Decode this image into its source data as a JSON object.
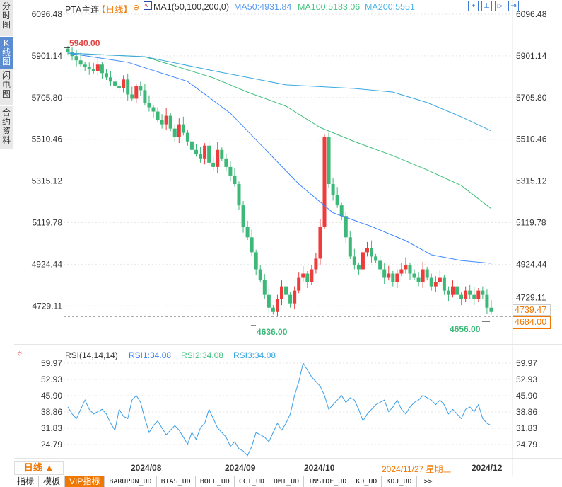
{
  "sidebar": {
    "tabs": [
      {
        "label": "分时图"
      },
      {
        "label": "K线图",
        "selected": true
      },
      {
        "label": "闪电图"
      },
      {
        "label": "合约资料"
      }
    ]
  },
  "header": {
    "symbol": "PTA主连",
    "period": "【日线】",
    "ma_label": "MA1(50,100,200,0)",
    "ma50": "MA50:4931.84",
    "ma100": "MA100:5183.06",
    "ma200": "MA200:5551",
    "icons": [
      "crosshair-icon",
      "fit-icon",
      "play-icon",
      "exit-icon"
    ]
  },
  "colors": {
    "up": "#ee3b3b",
    "down": "#3cb878",
    "ma50": "#3a86ff",
    "ma100": "#3dbf7a",
    "ma200": "#3aa7e0",
    "rsi": "#3a9ee8",
    "accent": "#f07800",
    "high_label": "#e04848",
    "low_label": "#3cb878"
  },
  "price_axis": [
    "6096.48",
    "5901.14",
    "5705.80",
    "5510.46",
    "5315.12",
    "5119.78",
    "4924.44",
    "4729.11"
  ],
  "annotations": {
    "high": "5940.00",
    "low": "4636.00",
    "low2": "4656.00",
    "last_price": "4739.47",
    "current_price": "4684.00"
  },
  "rsi": {
    "label": "RSI(14,14,14)",
    "rsi1": "RSI1:34.08",
    "rsi2": "RSI2:34.08",
    "rsi3": "RSI3:34.08",
    "axis": [
      "59.97",
      "52.93",
      "45.90",
      "38.86",
      "31.83",
      "24.79"
    ]
  },
  "date_axis": {
    "period_button": "日线 ▲",
    "dates": [
      "2024/08",
      "2024/09",
      "2024/10",
      "2024/12"
    ],
    "cursor_date": "2024/11/27 星期三"
  },
  "bottom_tabs": [
    "指标",
    "模板",
    "VIP指标",
    "BARUPDN_UD",
    "BIAS_UD",
    "BOLL_UD",
    "CCI_UD",
    "DMI_UD",
    "INSIDE_UD",
    "KD_UD",
    "KDJ_UD",
    ">>"
  ],
  "chart_data": {
    "type": "candlestick",
    "closes": [
      5920,
      5900,
      5880,
      5860,
      5850,
      5840,
      5830,
      5860,
      5820,
      5800,
      5780,
      5760,
      5750,
      5790,
      5720,
      5700,
      5760,
      5740,
      5680,
      5660,
      5640,
      5600,
      5580,
      5620,
      5560,
      5520,
      5580,
      5540,
      5500,
      5460,
      5440,
      5420,
      5480,
      5400,
      5380,
      5460,
      5420,
      5380,
      5340,
      5300,
      5200,
      5100,
      5050,
      4980,
      4900,
      4850,
      4780,
      4720,
      4700,
      4760,
      4820,
      4780,
      4740,
      4800,
      4860,
      4880,
      4840,
      4900,
      4950,
      5100,
      5520,
      5300,
      5250,
      5200,
      5150,
      5050,
      4960,
      4920,
      4900,
      4980,
      5000,
      4960,
      4940,
      4900,
      4860,
      4880,
      4840,
      4880,
      4900,
      4920,
      4880,
      4860,
      4840,
      4900,
      4860,
      4820,
      4840,
      4860,
      4800,
      4780,
      4820,
      4780,
      4760,
      4800,
      4780,
      4760,
      4800,
      4780,
      4720,
      4700
    ],
    "ma50": [
      [
        0,
        5914
      ],
      [
        14,
        5871
      ],
      [
        28,
        5781
      ],
      [
        38,
        5632
      ],
      [
        46,
        5466
      ],
      [
        54,
        5300
      ],
      [
        62,
        5165
      ],
      [
        71,
        5101
      ],
      [
        79,
        5034
      ],
      [
        85,
        4968
      ],
      [
        92,
        4941
      ],
      [
        99,
        4928
      ]
    ],
    "ma100": [
      [
        0,
        5914
      ],
      [
        18,
        5897
      ],
      [
        34,
        5798
      ],
      [
        42,
        5731
      ],
      [
        51,
        5665
      ],
      [
        59,
        5565
      ],
      [
        67,
        5499
      ],
      [
        76,
        5433
      ],
      [
        84,
        5366
      ],
      [
        92,
        5293
      ],
      [
        99,
        5184
      ]
    ],
    "ma200": [
      [
        0,
        5914
      ],
      [
        18,
        5897
      ],
      [
        34,
        5831
      ],
      [
        51,
        5765
      ],
      [
        67,
        5748
      ],
      [
        76,
        5731
      ],
      [
        84,
        5682
      ],
      [
        92,
        5615
      ],
      [
        99,
        5549
      ]
    ],
    "rsi_values": [
      41,
      38,
      36,
      40,
      44,
      40,
      38,
      39,
      40,
      38,
      34,
      31,
      40,
      37,
      36,
      44,
      46,
      43,
      36,
      30,
      33,
      35,
      32,
      29,
      31,
      33,
      31,
      28,
      25,
      30,
      27,
      32,
      34,
      40,
      36,
      32,
      30,
      28,
      24,
      26,
      23,
      22,
      20,
      24,
      30,
      29,
      28,
      26,
      30,
      34,
      31,
      34,
      38,
      46,
      52,
      60,
      57,
      54,
      52,
      50,
      46,
      40,
      42,
      44,
      46,
      43,
      45,
      44,
      40,
      35,
      38,
      40,
      42,
      43,
      44,
      39,
      41,
      44,
      40,
      38,
      41,
      43,
      44,
      46,
      45,
      44,
      42,
      44,
      42,
      38,
      40,
      38,
      36,
      40,
      41,
      39,
      42,
      36,
      34,
      33
    ],
    "price_range": [
      4650,
      6096.48
    ],
    "rsi_range": [
      20,
      60
    ]
  }
}
